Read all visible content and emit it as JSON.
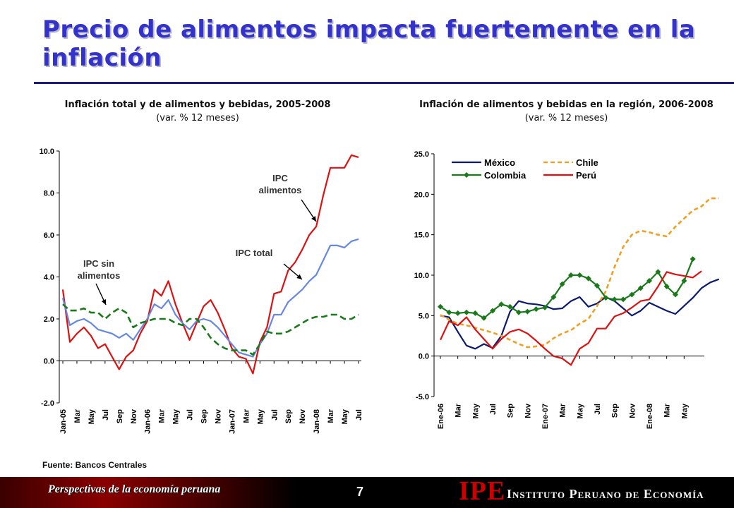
{
  "slide": {
    "title": "Precio de alimentos impacta fuertemente en la inflación",
    "source": "Fuente: Bancos Centrales",
    "footer_left": "Perspectivas de la economía peruana",
    "page_number": "7",
    "logo_text": "IPE",
    "institute_name": "Instituto Peruano de Economía"
  },
  "chart_data": [
    {
      "type": "line",
      "title": "Inflación total y de alimentos y bebidas, 2005-2008",
      "subtitle": "(var. % 12 meses)",
      "ylim": [
        -2,
        10
      ],
      "yticks": [
        "-2.0",
        "0.0",
        "2.0",
        "4.0",
        "6.0",
        "8.0",
        "10.0"
      ],
      "xtick_labels": [
        "Jan-05",
        "Mar",
        "May",
        "Jul",
        "Sep",
        "Nov",
        "Jan-06",
        "Mar",
        "May",
        "Jul",
        "Sep",
        "Nov",
        "Jan-07",
        "Mar",
        "May",
        "Jul",
        "Sep",
        "Nov",
        "Jan-08",
        "Mar",
        "May",
        "Jul"
      ],
      "series": [
        {
          "key": "ipc_alimentos",
          "color": "#dd1111",
          "dash": "",
          "values": [
            3.4,
            0.9,
            1.3,
            1.6,
            1.2,
            0.6,
            0.8,
            0.2,
            -0.4,
            0.2,
            0.5,
            1.3,
            1.9,
            3.4,
            3.1,
            3.8,
            2.7,
            1.8,
            1.0,
            1.8,
            2.6,
            2.9,
            2.3,
            1.5,
            0.6,
            0.2,
            0.1,
            -0.6,
            0.9,
            1.6,
            3.2,
            3.3,
            4.3,
            4.7,
            5.3,
            6.0,
            6.4,
            7.9,
            9.2,
            9.2,
            9.2,
            9.8,
            9.7
          ]
        },
        {
          "key": "ipc_total",
          "color": "#6688e0",
          "dash": "",
          "values": [
            3.0,
            1.7,
            1.9,
            2.0,
            1.8,
            1.5,
            1.4,
            1.3,
            1.1,
            1.3,
            1.0,
            1.5,
            2.0,
            2.7,
            2.5,
            2.9,
            2.2,
            1.8,
            1.5,
            1.9,
            2.0,
            1.9,
            1.6,
            1.2,
            0.8,
            0.4,
            0.3,
            0.2,
            0.8,
            1.3,
            2.2,
            2.2,
            2.8,
            3.1,
            3.4,
            3.8,
            4.1,
            4.8,
            5.5,
            5.5,
            5.4,
            5.7,
            5.8
          ]
        },
        {
          "key": "ipc_sin_alimentos",
          "color": "#1a7a1a",
          "dash": "9,5",
          "values": [
            2.7,
            2.4,
            2.4,
            2.5,
            2.3,
            2.3,
            2.0,
            2.3,
            2.5,
            2.3,
            1.6,
            1.8,
            1.9,
            2.0,
            2.0,
            2.0,
            1.8,
            1.7,
            2.0,
            2.0,
            1.6,
            1.1,
            0.8,
            0.6,
            0.5,
            0.5,
            0.5,
            0.3,
            0.8,
            1.4,
            1.3,
            1.3,
            1.4,
            1.6,
            1.8,
            2.0,
            2.1,
            2.1,
            2.2,
            2.2,
            2.0,
            2.0,
            2.2
          ]
        }
      ],
      "annotations": [
        {
          "key": "a_alimentos",
          "text": [
            "IPC",
            "alimentos"
          ]
        },
        {
          "key": "a_total",
          "text": [
            "IPC total"
          ]
        },
        {
          "key": "a_sin",
          "text": [
            "IPC sin",
            "alimentos"
          ]
        }
      ]
    },
    {
      "type": "line",
      "title": "Inflación de alimentos y bebidas en la región, 2006-2008",
      "subtitle": "(var. % 12 meses)",
      "ylim": [
        -5,
        25
      ],
      "yticks": [
        "-5.0",
        "0.0",
        "5.0",
        "10.0",
        "15.0",
        "20.0",
        "25.0"
      ],
      "xtick_labels": [
        "Ene-06",
        "Mar",
        "May",
        "Jul",
        "Sep",
        "Nov",
        "Ene-07",
        "Mar",
        "May",
        "Jul",
        "Sep",
        "Nov",
        "Ene-08",
        "Mar",
        "May"
      ],
      "series": [
        {
          "key": "mexico",
          "name": "México",
          "color": "#0a1a6e",
          "dash": "",
          "marker": "",
          "values": [
            5.0,
            4.8,
            3.0,
            1.3,
            0.9,
            1.5,
            1.0,
            2.5,
            5.5,
            6.8,
            6.5,
            6.4,
            6.2,
            5.8,
            5.9,
            6.8,
            7.3,
            6.1,
            6.5,
            7.3,
            6.8,
            5.9,
            5.0,
            5.6,
            6.6,
            6.1,
            5.6,
            5.2,
            6.2,
            7.2,
            8.4,
            9.1,
            9.5
          ]
        },
        {
          "key": "chile",
          "name": "Chile",
          "color": "#f0a020",
          "dash": "6,4",
          "marker": "",
          "values": [
            5.1,
            4.5,
            4.0,
            3.8,
            3.5,
            3.2,
            2.9,
            2.5,
            2.0,
            1.5,
            1.1,
            1.2,
            1.4,
            2.2,
            2.8,
            3.2,
            4.0,
            4.6,
            6.2,
            8.0,
            11.0,
            13.5,
            15.0,
            15.5,
            15.3,
            15.0,
            14.8,
            16.0,
            17.0,
            18.0,
            18.5,
            19.5,
            19.5
          ]
        },
        {
          "key": "colombia",
          "name": "Colombia",
          "color": "#1a7a1a",
          "dash": "",
          "marker": "diamond",
          "values": [
            6.1,
            5.4,
            5.3,
            5.4,
            5.3,
            4.7,
            5.6,
            6.4,
            6.1,
            5.4,
            5.5,
            5.8,
            6.0,
            7.3,
            8.9,
            10.0,
            10.0,
            9.6,
            8.7,
            7.2,
            7.0,
            7.0,
            7.6,
            8.4,
            9.3,
            10.4,
            8.6,
            7.6,
            9.3,
            12.0
          ]
        },
        {
          "key": "peru",
          "name": "Perú",
          "color": "#dd1111",
          "dash": "",
          "marker": "",
          "values": [
            2.0,
            4.3,
            3.8,
            4.8,
            3.3,
            2.1,
            0.9,
            2.1,
            3.0,
            3.3,
            2.8,
            1.9,
            0.9,
            0.0,
            -0.3,
            -1.1,
            0.9,
            1.6,
            3.4,
            3.4,
            4.9,
            5.3,
            6.0,
            6.8,
            7.0,
            8.6,
            10.4,
            10.1,
            9.9,
            9.7,
            10.5
          ]
        }
      ],
      "legend_position": "top-left"
    }
  ]
}
